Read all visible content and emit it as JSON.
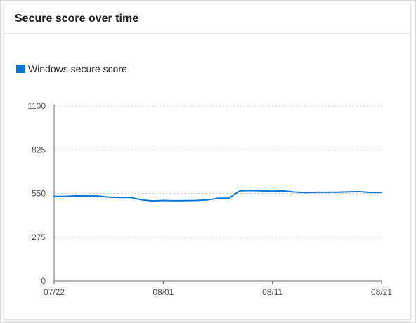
{
  "card": {
    "title": "Secure score over time"
  },
  "chart_data": {
    "type": "line",
    "title": "Secure score over time",
    "xlabel": "",
    "ylabel": "",
    "ylim": [
      0,
      1100
    ],
    "y_ticks": [
      "1100",
      "825",
      "550",
      "275",
      "0"
    ],
    "y_tick_values": [
      1100,
      825,
      550,
      275,
      0
    ],
    "x_ticks": [
      "07/22",
      "08/01",
      "08/11",
      "08/21"
    ],
    "x_tick_dates": [
      "07/22",
      "08/01",
      "08/11",
      "08/21"
    ],
    "grid": true,
    "legend_position": "top-left",
    "series": [
      {
        "name": "Windows secure score",
        "color": "#0a78d4",
        "x": [
          "07/22",
          "07/23",
          "07/24",
          "07/25",
          "07/26",
          "07/27",
          "07/28",
          "07/29",
          "07/30",
          "07/31",
          "08/01",
          "08/02",
          "08/03",
          "08/04",
          "08/05",
          "08/06",
          "08/07",
          "08/08",
          "08/09",
          "08/10",
          "08/11",
          "08/12",
          "08/13",
          "08/14",
          "08/15",
          "08/16",
          "08/17",
          "08/18",
          "08/19",
          "08/20",
          "08/21"
        ],
        "values": [
          532,
          532,
          535,
          534,
          534,
          527,
          525,
          525,
          510,
          503,
          506,
          504,
          505,
          506,
          509,
          520,
          520,
          566,
          568,
          566,
          564,
          566,
          559,
          555,
          557,
          557,
          558,
          560,
          561,
          556,
          556
        ]
      }
    ]
  }
}
